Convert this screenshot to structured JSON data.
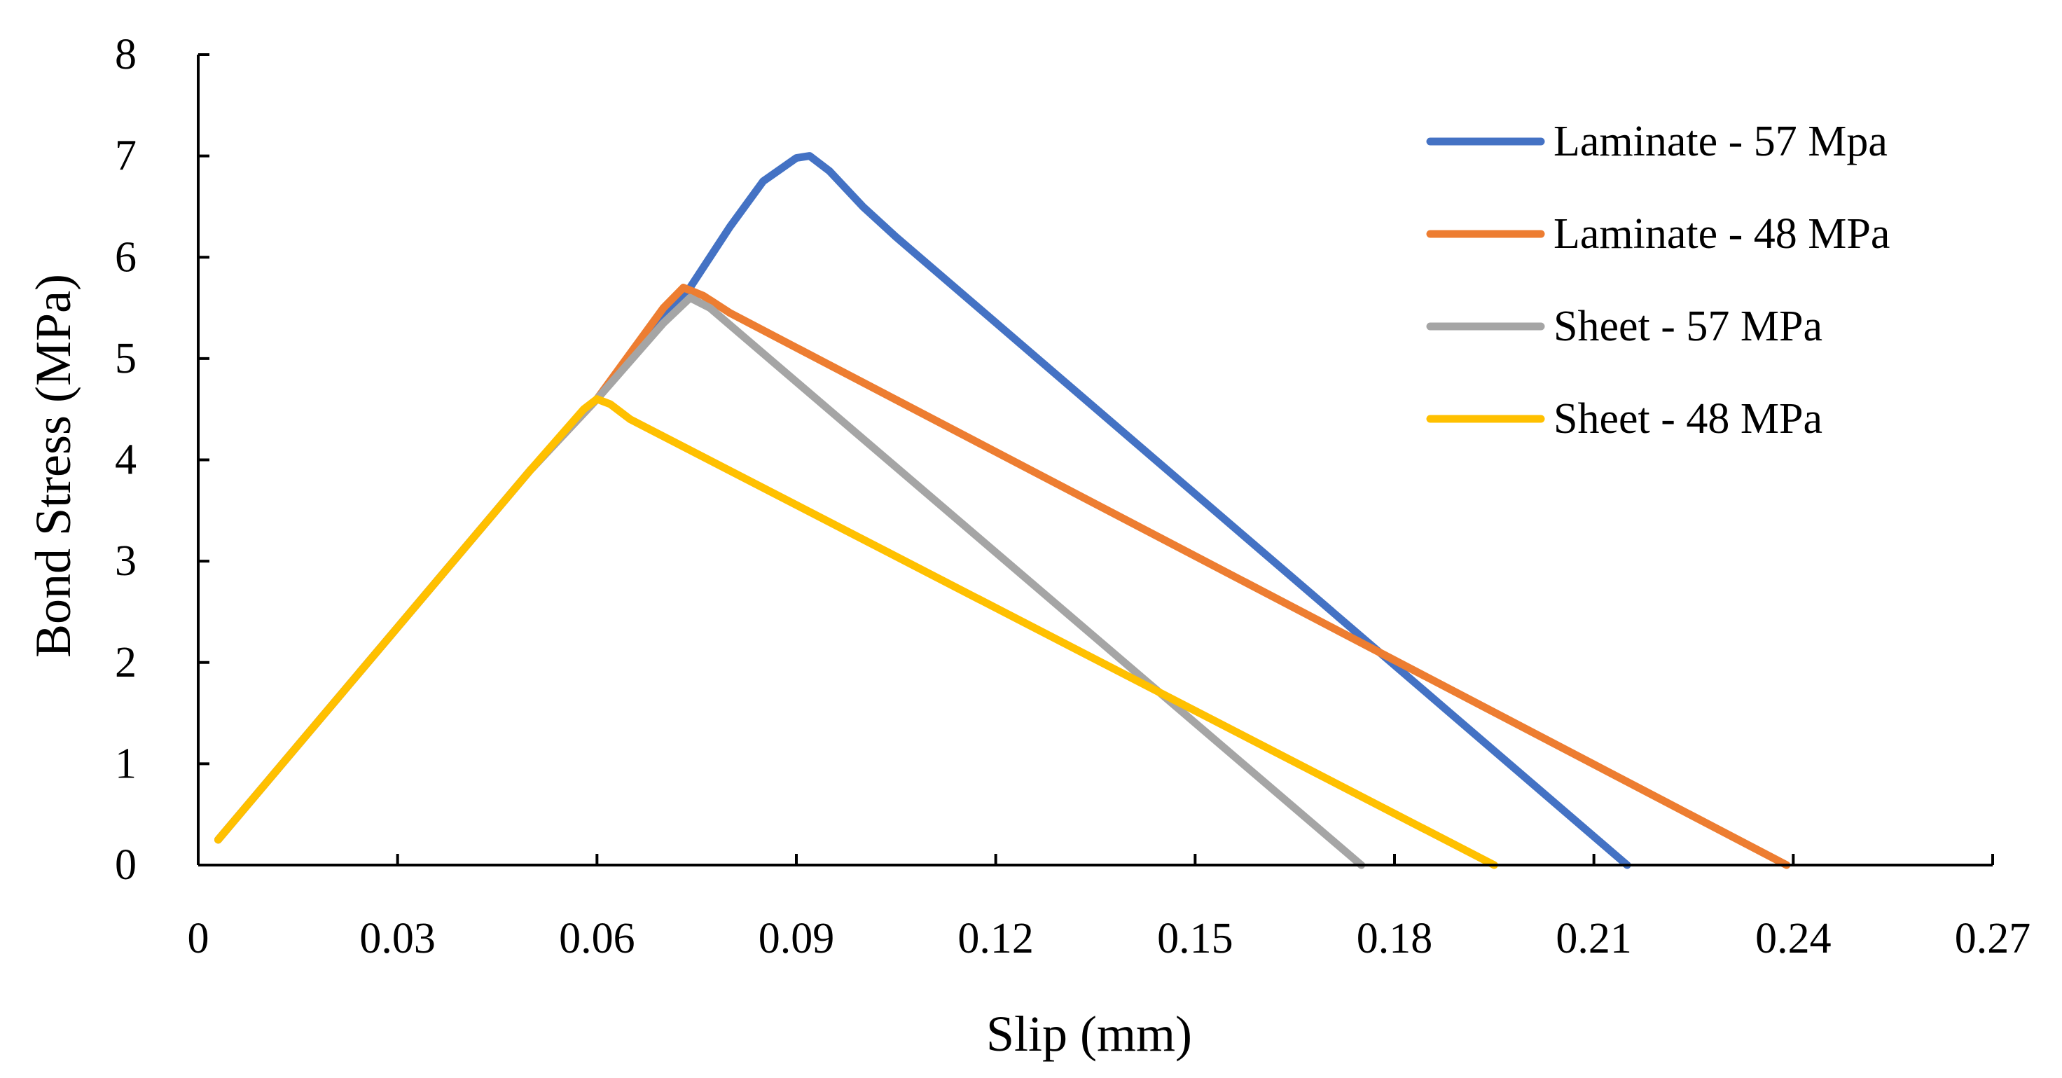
{
  "chart_data": {
    "type": "line",
    "title": "",
    "xlabel": "Slip (mm)",
    "ylabel": "Bond Stress (MPa)",
    "xlim": [
      0,
      0.27
    ],
    "ylim": [
      0,
      8
    ],
    "x_ticks": [
      "0",
      "0.03",
      "0.06",
      "0.09",
      "0.12",
      "0.15",
      "0.18",
      "0.21",
      "0.24",
      "0.27"
    ],
    "y_ticks": [
      "0",
      "1",
      "2",
      "3",
      "4",
      "5",
      "6",
      "7",
      "8"
    ],
    "grid": false,
    "legend_position": "top-right",
    "series": [
      {
        "name": "Laminate - 57 Mpa",
        "color": "#4472C4",
        "x": [
          0.003,
          0.05,
          0.06,
          0.074,
          0.08,
          0.085,
          0.09,
          0.092,
          0.095,
          0.1,
          0.105,
          0.215
        ],
        "y": [
          0.25,
          3.9,
          4.6,
          5.7,
          6.3,
          6.75,
          6.98,
          7.0,
          6.85,
          6.5,
          6.2,
          0.0
        ]
      },
      {
        "name": "Laminate - 48 MPa",
        "color": "#ED7D31",
        "x": [
          0.003,
          0.05,
          0.06,
          0.07,
          0.073,
          0.076,
          0.08,
          0.239
        ],
        "y": [
          0.25,
          3.9,
          4.6,
          5.5,
          5.7,
          5.62,
          5.45,
          0.0
        ]
      },
      {
        "name": "Sheet - 57 MPa",
        "color": "#A5A5A5",
        "x": [
          0.003,
          0.05,
          0.06,
          0.07,
          0.074,
          0.077,
          0.175
        ],
        "y": [
          0.25,
          3.9,
          4.6,
          5.35,
          5.6,
          5.5,
          0.0
        ]
      },
      {
        "name": "Sheet - 48 MPa",
        "color": "#FFC000",
        "x": [
          0.003,
          0.05,
          0.058,
          0.06,
          0.062,
          0.065,
          0.195
        ],
        "y": [
          0.25,
          3.9,
          4.5,
          4.6,
          4.55,
          4.4,
          0.0
        ]
      }
    ]
  }
}
